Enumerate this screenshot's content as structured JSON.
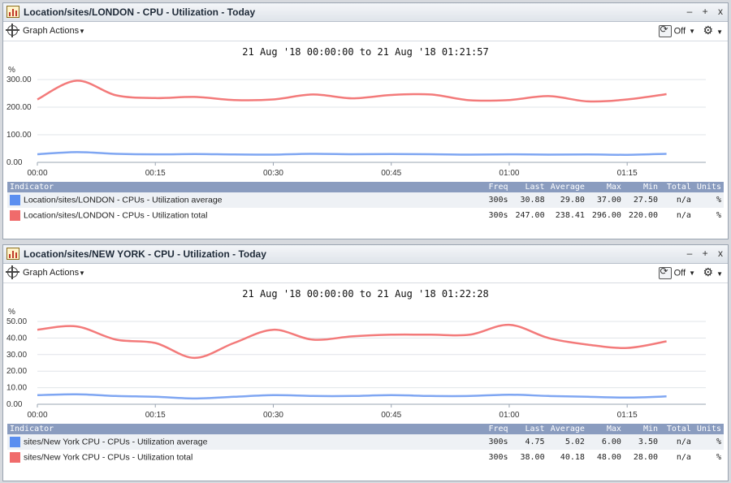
{
  "panels": [
    {
      "title": "Location/sites/LONDON - CPU - Utilization - Today",
      "window_buttons": [
        "–",
        "+",
        "x"
      ],
      "graph_actions_label": "Graph Actions",
      "refresh_label": "Off",
      "time_range": "21 Aug '18 00:00:00 to 21 Aug '18 01:21:57",
      "y_unit": "%",
      "legend_headers": {
        "indicator": "Indicator",
        "freq": "Freq",
        "last": "Last",
        "average": "Average",
        "max": "Max",
        "min": "Min",
        "total": "Total",
        "units": "Units"
      },
      "rows": [
        {
          "indicator": "Location/sites/LONDON - CPUs - Utilization average",
          "freq": "300s",
          "last": "30.88",
          "average": "29.80",
          "max": "37.00",
          "min": "27.50",
          "total": "n/a",
          "units": "%",
          "color": "#5a8ef0"
        },
        {
          "indicator": "Location/sites/LONDON - CPUs - Utilization total",
          "freq": "300s",
          "last": "247.00",
          "average": "238.41",
          "max": "296.00",
          "min": "220.00",
          "total": "n/a",
          "units": "%",
          "color": "#f06b6b"
        }
      ],
      "chart_data": {
        "type": "line",
        "title": "21 Aug '18 00:00:00 to 21 Aug '18 01:21:57",
        "ylabel": "%",
        "ylim": [
          0,
          300
        ],
        "yticks": [
          "0.00",
          "100.00",
          "200.00",
          "300.00"
        ],
        "xticks": [
          "00:00",
          "00:15",
          "00:30",
          "00:45",
          "01:00",
          "01:15"
        ],
        "x": [
          "00:00",
          "00:05",
          "00:10",
          "00:15",
          "00:20",
          "00:25",
          "00:30",
          "00:35",
          "00:40",
          "00:45",
          "00:50",
          "00:55",
          "01:00",
          "01:05",
          "01:10",
          "01:15",
          "01:20"
        ],
        "series": [
          {
            "name": "Location/sites/LONDON - CPUs - Utilization average",
            "color": "#7fa6f2",
            "values": [
              29.5,
              37,
              31,
              29,
              30,
              28.5,
              28,
              31,
              29.5,
              30,
              29.5,
              28,
              29,
              28,
              28.5,
              27.5,
              30.88
            ]
          },
          {
            "name": "Location/sites/LONDON - CPUs - Utilization total",
            "color": "#f37a7a",
            "values": [
              228,
              296,
              243,
              233,
              237,
              226,
              228,
              246,
              232,
              244,
              246,
              225,
              226,
              240,
              221,
              228,
              247
            ]
          }
        ]
      }
    },
    {
      "title": "Location/sites/NEW YORK - CPU - Utilization - Today",
      "window_buttons": [
        "–",
        "+",
        "x"
      ],
      "graph_actions_label": "Graph Actions",
      "refresh_label": "Off",
      "time_range": "21 Aug '18 00:00:00 to 21 Aug '18 01:22:28",
      "y_unit": "%",
      "legend_headers": {
        "indicator": "Indicator",
        "freq": "Freq",
        "last": "Last",
        "average": "Average",
        "max": "Max",
        "min": "Min",
        "total": "Total",
        "units": "Units"
      },
      "rows": [
        {
          "indicator": "sites/New York CPU - CPUs - Utilization average",
          "freq": "300s",
          "last": "4.75",
          "average": "5.02",
          "max": "6.00",
          "min": "3.50",
          "total": "n/a",
          "units": "%",
          "color": "#5a8ef0"
        },
        {
          "indicator": "sites/New York CPU - CPUs - Utilization total",
          "freq": "300s",
          "last": "38.00",
          "average": "40.18",
          "max": "48.00",
          "min": "28.00",
          "total": "n/a",
          "units": "%",
          "color": "#f06b6b"
        }
      ],
      "chart_data": {
        "type": "line",
        "title": "21 Aug '18 00:00:00 to 21 Aug '18 01:22:28",
        "ylabel": "%",
        "ylim": [
          0,
          50
        ],
        "yticks": [
          "0.00",
          "10.00",
          "20.00",
          "30.00",
          "40.00",
          "50.00"
        ],
        "xticks": [
          "00:00",
          "00:15",
          "00:30",
          "00:45",
          "01:00",
          "01:15"
        ],
        "x": [
          "00:00",
          "00:05",
          "00:10",
          "00:15",
          "00:20",
          "00:25",
          "00:30",
          "00:35",
          "00:40",
          "00:45",
          "00:50",
          "00:55",
          "01:00",
          "01:05",
          "01:10",
          "01:15",
          "01:20"
        ],
        "series": [
          {
            "name": "sites/New York CPU - CPUs - Utilization average",
            "color": "#7fa6f2",
            "values": [
              5.5,
              6,
              5,
              4.5,
              3.5,
              4.5,
              5.5,
              5,
              5,
              5.5,
              5,
              5,
              5.8,
              5,
              4.5,
              4,
              4.75
            ]
          },
          {
            "name": "sites/New York CPU - CPUs - Utilization total",
            "color": "#f37a7a",
            "values": [
              45,
              47,
              39,
              37,
              28,
              37,
              45,
              39,
              41,
              42,
              42,
              42,
              48,
              40,
              36,
              34,
              38
            ]
          }
        ]
      }
    }
  ]
}
